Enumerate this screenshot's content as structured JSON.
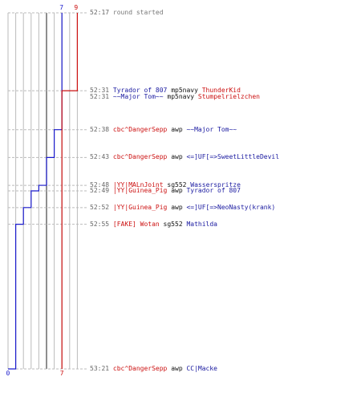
{
  "chart_data": {
    "type": "line",
    "title": "",
    "xlabel": "",
    "ylabel": "",
    "time_range": [
      "52:17",
      "53:21"
    ],
    "series": [
      {
        "color": "#1a1acc",
        "start_label": "7",
        "end_label": "0",
        "steps": [
          {
            "time": "52:17",
            "value": 7
          },
          {
            "time": "52:38",
            "value": 6
          },
          {
            "time": "52:43",
            "value": 5
          },
          {
            "time": "52:48",
            "value": 4
          },
          {
            "time": "52:49",
            "value": 3
          },
          {
            "time": "52:52",
            "value": 2
          },
          {
            "time": "52:55",
            "value": 1
          },
          {
            "time": "53:21",
            "value": 0
          }
        ]
      },
      {
        "color": "#cc1111",
        "start_label": "9",
        "end_label": "7",
        "steps": [
          {
            "time": "52:17",
            "value": 9
          },
          {
            "time": "52:31",
            "value": 7
          },
          {
            "time": "53:21",
            "value": 7
          }
        ]
      }
    ],
    "max_value": 9,
    "colors": {
      "grid": "#bbbbbb",
      "center_line": "#444444",
      "dashed": "#bbbbbb",
      "red_team": "#cc1111",
      "blue_team": "#1a1aa0",
      "time": "#666666"
    }
  },
  "events": [
    {
      "time": "52:17",
      "parts": [
        {
          "text": "round started",
          "style": "msg"
        }
      ]
    },
    {
      "time": "52:31",
      "parts": [
        {
          "text": "Tyrador of 807",
          "style": "team-blue"
        },
        {
          "text": "mp5navy",
          "style": "weapon"
        },
        {
          "text": "ThunderKid",
          "style": "team-red"
        }
      ]
    },
    {
      "time": "52:31",
      "parts": [
        {
          "text": "~~Major Tom~~",
          "style": "team-blue"
        },
        {
          "text": "mp5navy",
          "style": "weapon"
        },
        {
          "text": "Stumpelrielzchen",
          "style": "team-red"
        }
      ]
    },
    {
      "time": "52:38",
      "parts": [
        {
          "text": "cbc^DangerSepp",
          "style": "team-red"
        },
        {
          "text": "awp",
          "style": "weapon"
        },
        {
          "text": "~~Major Tom~~",
          "style": "team-blue"
        }
      ]
    },
    {
      "time": "52:43",
      "parts": [
        {
          "text": "cbc^DangerSepp",
          "style": "team-red"
        },
        {
          "text": "awp",
          "style": "weapon"
        },
        {
          "text": "<=]UF[=>SweetLittleDevil",
          "style": "team-blue"
        }
      ]
    },
    {
      "time": "52:48",
      "parts": [
        {
          "text": "|YY|MALnJoint",
          "style": "team-red"
        },
        {
          "text": "sg552",
          "style": "weapon"
        },
        {
          "text": "Wasserspritze",
          "style": "team-blue"
        }
      ]
    },
    {
      "time": "52:49",
      "parts": [
        {
          "text": "|YY|Guinea_Pig",
          "style": "team-red"
        },
        {
          "text": "awp",
          "style": "weapon"
        },
        {
          "text": "Tyrador of 807",
          "style": "team-blue"
        }
      ]
    },
    {
      "time": "52:52",
      "parts": [
        {
          "text": "|YY|Guinea_Pig",
          "style": "team-red"
        },
        {
          "text": "awp",
          "style": "weapon"
        },
        {
          "text": "<=]UF[=>NeoNasty(krank)",
          "style": "team-blue"
        }
      ]
    },
    {
      "time": "52:55",
      "parts": [
        {
          "text": "[FAKE] Wotan",
          "style": "team-red"
        },
        {
          "text": "sg552",
          "style": "weapon"
        },
        {
          "text": "Mathilda",
          "style": "team-blue"
        }
      ]
    },
    {
      "time": "53:21",
      "parts": [
        {
          "text": "cbc^DangerSepp",
          "style": "team-red"
        },
        {
          "text": "awp",
          "style": "weapon"
        },
        {
          "text": "CC|Macke",
          "style": "team-blue"
        }
      ]
    }
  ]
}
